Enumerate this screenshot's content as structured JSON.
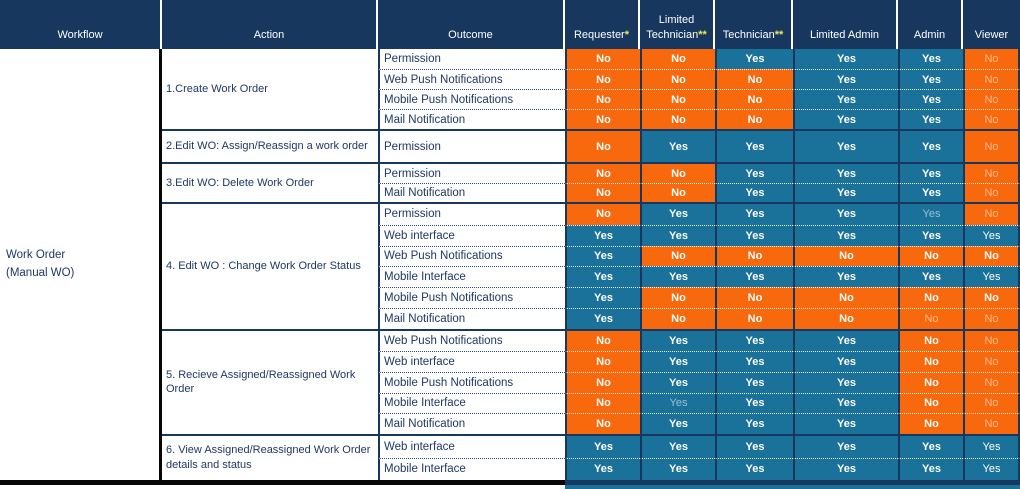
{
  "table": {
    "workflow": {
      "line1": "Work Order",
      "line2": "(Manual WO)"
    },
    "headers": [
      {
        "label": "Workflow"
      },
      {
        "label": "Action"
      },
      {
        "label": "Outcome"
      },
      {
        "label": "Requester",
        "mark": "*"
      },
      {
        "label": "Limited Technician",
        "mark": "**"
      },
      {
        "label": "Technician",
        "mark": "**"
      },
      {
        "label": "Limited Admin"
      },
      {
        "label": "Admin"
      },
      {
        "label": "Viewer"
      }
    ],
    "colors": {
      "header_bg": "#17375E",
      "yes_bg": "#1A7199",
      "no_bg": "#F8680C",
      "label_text": "#1F3864",
      "asterisk": "#EDE94F"
    },
    "sections": [
      {
        "action": "1.Create Work Order",
        "rows": [
          {
            "outcome": "Permission",
            "cells": [
              {
                "v": "No"
              },
              {
                "v": "No"
              },
              {
                "v": "Yes"
              },
              {
                "v": "Yes"
              },
              {
                "v": "Yes"
              },
              {
                "v": "No",
                "style": "dim"
              }
            ]
          },
          {
            "outcome": "Web Push Notifications",
            "cells": [
              {
                "v": "No"
              },
              {
                "v": "No"
              },
              {
                "v": "No"
              },
              {
                "v": "Yes"
              },
              {
                "v": "Yes"
              },
              {
                "v": "No",
                "style": "dim"
              }
            ]
          },
          {
            "outcome": "Mobile Push Notifications",
            "cells": [
              {
                "v": "No"
              },
              {
                "v": "No"
              },
              {
                "v": "No"
              },
              {
                "v": "Yes"
              },
              {
                "v": "Yes"
              },
              {
                "v": "No",
                "style": "dim"
              }
            ]
          },
          {
            "outcome": "Mail Notification",
            "cells": [
              {
                "v": "No"
              },
              {
                "v": "No"
              },
              {
                "v": "No"
              },
              {
                "v": "Yes"
              },
              {
                "v": "Yes"
              },
              {
                "v": "No",
                "style": "dim"
              }
            ]
          }
        ]
      },
      {
        "action": "2.Edit WO: Assign/Reassign a work order",
        "rows": [
          {
            "outcome": "Permission",
            "cells": [
              {
                "v": "No"
              },
              {
                "v": "Yes"
              },
              {
                "v": "Yes"
              },
              {
                "v": "Yes"
              },
              {
                "v": "Yes"
              },
              {
                "v": "No",
                "style": "dim"
              }
            ]
          }
        ]
      },
      {
        "action": "3.Edit WO:  Delete Work Order",
        "rows": [
          {
            "outcome": "Permission",
            "cells": [
              {
                "v": "No"
              },
              {
                "v": "No"
              },
              {
                "v": "Yes"
              },
              {
                "v": "Yes"
              },
              {
                "v": "Yes"
              },
              {
                "v": "No",
                "style": "dim"
              }
            ]
          },
          {
            "outcome": "Mail Notification",
            "cells": [
              {
                "v": "No"
              },
              {
                "v": "No"
              },
              {
                "v": "Yes"
              },
              {
                "v": "Yes"
              },
              {
                "v": "Yes"
              },
              {
                "v": "No",
                "style": "dim"
              }
            ]
          }
        ]
      },
      {
        "action": "4. Edit WO : Change Work Order Status",
        "rows": [
          {
            "outcome": "Permission",
            "cells": [
              {
                "v": "No"
              },
              {
                "v": "Yes"
              },
              {
                "v": "Yes"
              },
              {
                "v": "Yes"
              },
              {
                "v": "Yes",
                "style": "dim"
              },
              {
                "v": "No",
                "style": "dim"
              }
            ]
          },
          {
            "outcome": "Web interface",
            "cells": [
              {
                "v": "Yes"
              },
              {
                "v": "Yes"
              },
              {
                "v": "Yes"
              },
              {
                "v": "Yes"
              },
              {
                "v": "Yes"
              },
              {
                "v": "Yes",
                "style": "regular"
              }
            ]
          },
          {
            "outcome": "Web Push Notifications",
            "cells": [
              {
                "v": "Yes"
              },
              {
                "v": "No"
              },
              {
                "v": "No"
              },
              {
                "v": "No"
              },
              {
                "v": "No"
              },
              {
                "v": "No"
              }
            ]
          },
          {
            "outcome": "Mobile Interface",
            "cells": [
              {
                "v": "Yes"
              },
              {
                "v": "Yes"
              },
              {
                "v": "Yes"
              },
              {
                "v": "Yes"
              },
              {
                "v": "Yes"
              },
              {
                "v": "Yes",
                "style": "regular"
              }
            ]
          },
          {
            "outcome": "Mobile Push Notifications",
            "cells": [
              {
                "v": "Yes"
              },
              {
                "v": "No"
              },
              {
                "v": "No"
              },
              {
                "v": "No"
              },
              {
                "v": "No"
              },
              {
                "v": "No"
              }
            ]
          },
          {
            "outcome": "Mail Notification",
            "cells": [
              {
                "v": "Yes"
              },
              {
                "v": "No"
              },
              {
                "v": "No"
              },
              {
                "v": "No"
              },
              {
                "v": "No",
                "style": "dim"
              },
              {
                "v": "No",
                "style": "dim"
              }
            ]
          }
        ]
      },
      {
        "action": "5. Recieve Assigned/Reassigned Work Order",
        "rows": [
          {
            "outcome": "Web Push Notifications",
            "cells": [
              {
                "v": "No"
              },
              {
                "v": "Yes"
              },
              {
                "v": "Yes"
              },
              {
                "v": "Yes"
              },
              {
                "v": "No"
              },
              {
                "v": "No",
                "style": "dim"
              }
            ]
          },
          {
            "outcome": "Web interface",
            "cells": [
              {
                "v": "No"
              },
              {
                "v": "Yes"
              },
              {
                "v": "Yes"
              },
              {
                "v": "Yes"
              },
              {
                "v": "No"
              },
              {
                "v": "No",
                "style": "dim"
              }
            ]
          },
          {
            "outcome": "Mobile Push Notifications",
            "cells": [
              {
                "v": "No"
              },
              {
                "v": "Yes"
              },
              {
                "v": "Yes"
              },
              {
                "v": "Yes"
              },
              {
                "v": "No"
              },
              {
                "v": "No",
                "style": "dim"
              }
            ]
          },
          {
            "outcome": "Mobile Interface",
            "cells": [
              {
                "v": "No"
              },
              {
                "v": "Yes",
                "style": "dim"
              },
              {
                "v": "Yes"
              },
              {
                "v": "Yes"
              },
              {
                "v": "No"
              },
              {
                "v": "No",
                "style": "dim"
              }
            ]
          },
          {
            "outcome": "Mail Notification",
            "cells": [
              {
                "v": "No"
              },
              {
                "v": "Yes"
              },
              {
                "v": "Yes"
              },
              {
                "v": "Yes"
              },
              {
                "v": "No"
              },
              {
                "v": "No",
                "style": "dim"
              }
            ]
          }
        ]
      },
      {
        "action": "6. View Assigned/Reassigned Work Order details and status",
        "rows": [
          {
            "outcome": "Web interface",
            "cells": [
              {
                "v": "Yes"
              },
              {
                "v": "Yes"
              },
              {
                "v": "Yes"
              },
              {
                "v": "Yes"
              },
              {
                "v": "Yes"
              },
              {
                "v": "Yes",
                "style": "regular"
              }
            ]
          },
          {
            "outcome": "Mobile Interface",
            "cells": [
              {
                "v": "Yes"
              },
              {
                "v": "Yes"
              },
              {
                "v": "Yes"
              },
              {
                "v": "Yes"
              },
              {
                "v": "Yes"
              },
              {
                "v": "Yes",
                "style": "regular"
              }
            ]
          }
        ]
      }
    ]
  }
}
